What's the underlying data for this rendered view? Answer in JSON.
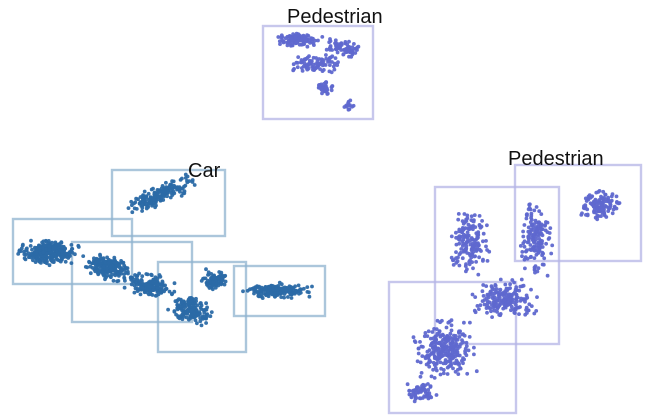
{
  "colors": {
    "car_points": "#2b6aa6",
    "car_box": "#8fb3cf",
    "pedestrian_points": "#5f68cf",
    "pedestrian_box": "#b4b4e6"
  },
  "clusters": [
    {
      "id": "pedestrian-top",
      "label": "Pedestrian",
      "class": "pedestrian"
    },
    {
      "id": "car-left",
      "label": "Car",
      "class": "car"
    },
    {
      "id": "pedestrian-right",
      "label": "Pedestrian",
      "class": "pedestrian"
    }
  ]
}
